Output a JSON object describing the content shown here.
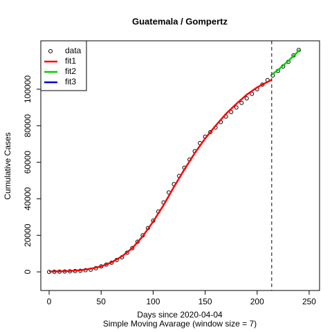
{
  "chart_data": {
    "type": "line",
    "title": "Guatemala / Gompertz",
    "x_label": "Days since 2020-04-04",
    "subtitle": "Simple Moving Avarage (window size = 7)",
    "y_label": "Cumulative Cases",
    "xlim": [
      -8,
      260
    ],
    "ylim": [
      -10200,
      126500
    ],
    "xticks": [
      0,
      50,
      100,
      150,
      200,
      250
    ],
    "yticks": [
      0,
      20000,
      40000,
      60000,
      80000,
      100000
    ],
    "vline": 214,
    "legend": "topleft",
    "series": [
      {
        "name": "data",
        "style": "points",
        "color": "#000000",
        "x": [
          0,
          5,
          10,
          15,
          20,
          25,
          30,
          35,
          40,
          45,
          50,
          55,
          60,
          65,
          70,
          75,
          80,
          85,
          90,
          95,
          100,
          105,
          110,
          115,
          120,
          125,
          130,
          135,
          140,
          145,
          150,
          155,
          160,
          165,
          170,
          175,
          180,
          185,
          190,
          195,
          200,
          205,
          210,
          215,
          220,
          225,
          230,
          235,
          240
        ],
        "values": [
          0,
          50,
          100,
          200,
          300,
          450,
          600,
          900,
          1200,
          2000,
          3000,
          4000,
          5000,
          6500,
          8000,
          10500,
          13000,
          16500,
          20000,
          24000,
          28000,
          33000,
          38000,
          43500,
          48000,
          52500,
          57000,
          61500,
          66000,
          70500,
          74000,
          76500,
          79000,
          82000,
          85000,
          87500,
          90000,
          92500,
          95000,
          97500,
          100000,
          102500,
          105000,
          107500,
          110000,
          112500,
          115000,
          118500,
          121500
        ]
      },
      {
        "name": "fit1",
        "style": "line",
        "color": "#ff0000",
        "x": [
          0,
          10,
          20,
          30,
          40,
          50,
          60,
          70,
          80,
          90,
          100,
          110,
          120,
          130,
          140,
          150,
          160,
          170,
          180,
          190,
          200,
          210,
          214
        ],
        "values": [
          200,
          300,
          500,
          900,
          1700,
          3000,
          5200,
          8500,
          13000,
          19500,
          27500,
          36500,
          46500,
          56000,
          65000,
          73000,
          80000,
          86500,
          92000,
          97000,
          101000,
          104000,
          105200
        ]
      },
      {
        "name": "fit2",
        "style": "line",
        "color": "#00cd00",
        "x": [
          214,
          220,
          230,
          241
        ],
        "values": [
          108000,
          110500,
          115500,
          121500
        ]
      },
      {
        "name": "fit3",
        "style": "line",
        "color": "#0000cd",
        "x": [],
        "values": []
      }
    ]
  }
}
